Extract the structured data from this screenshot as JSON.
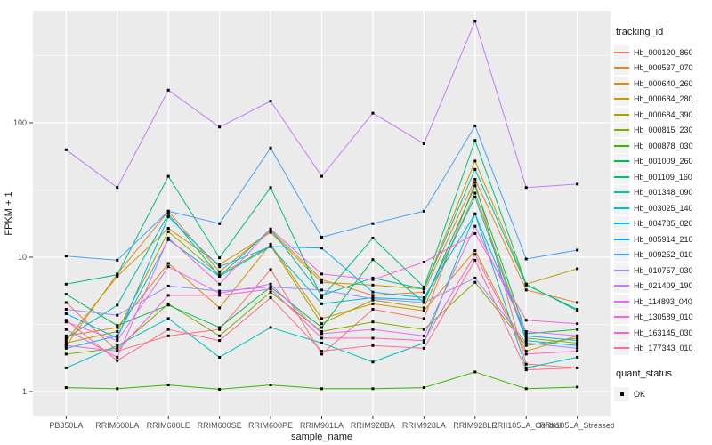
{
  "chart_data": {
    "type": "line",
    "title": "",
    "xlabel": "sample_name",
    "ylabel": "FPKM + 1",
    "y_scale": "log10",
    "y_ticks": [
      1,
      10,
      100
    ],
    "ylim": [
      1,
      620
    ],
    "grid": "on",
    "legend_position": "right",
    "panel_bg": "#EBEBEB",
    "grid_major_color": "#FFFFFF",
    "grid_minor_color": "#F5F5F5",
    "tick_color": "#333333",
    "axis_text_color": "#4D4D4D",
    "axis_title_color": "#1A1A1A",
    "point_color": "#000000",
    "legend_key_bg": "#F2F2F2",
    "legend_title": "tracking_id",
    "legend2_title": "quant_status",
    "legend2_items": [
      {
        "label": "OK",
        "marker": "black-square"
      }
    ],
    "categories": [
      "PB350LA",
      "RRIM600LA",
      "RRIM600LE",
      "RRIM600SE",
      "RRIM600PE",
      "RRIM901LA",
      "RRIM928BA",
      "RRIM928LA",
      "RRIM928LE",
      "RRII105LA_Control",
      "RRII105LA_Stressed"
    ],
    "series": [
      {
        "name": "Hb_000120_860",
        "color": "#F8766D",
        "values": [
          4.6,
          2.0,
          2.6,
          2.9,
          8.1,
          1.9,
          4.1,
          3.5,
          36,
          1.6,
          1.5
        ]
      },
      {
        "name": "Hb_000537_070",
        "color": "#E88526",
        "values": [
          2.2,
          7.5,
          22,
          7.8,
          15.8,
          6.8,
          5.2,
          5.5,
          38,
          5.7,
          4.6
        ]
      },
      {
        "name": "Hb_000640_260",
        "color": "#D89000",
        "values": [
          2.6,
          3.0,
          9.0,
          4.2,
          12.5,
          3.5,
          4.5,
          4.0,
          11.2,
          2.0,
          2.6
        ]
      },
      {
        "name": "Hb_000684_280",
        "color": "#C49A00",
        "values": [
          2.4,
          7.2,
          16.4,
          8.8,
          15.3,
          6.5,
          6.2,
          5.8,
          52,
          6.3,
          8.2
        ]
      },
      {
        "name": "Hb_000684_390",
        "color": "#A3A500",
        "values": [
          2.3,
          2.8,
          15.5,
          7.4,
          12.2,
          3.2,
          4.8,
          4.2,
          30,
          2.5,
          2.3
        ]
      },
      {
        "name": "Hb_000815_230",
        "color": "#7CAE00",
        "values": [
          1.9,
          2.1,
          4.5,
          2.6,
          5.5,
          2.8,
          3.3,
          2.9,
          6.5,
          2.2,
          2.5
        ]
      },
      {
        "name": "Hb_000878_030",
        "color": "#39B600",
        "values": [
          1.07,
          1.05,
          1.12,
          1.04,
          1.12,
          1.05,
          1.05,
          1.07,
          1.4,
          1.05,
          1.08
        ]
      },
      {
        "name": "Hb_001009_260",
        "color": "#00BB4E",
        "values": [
          5.3,
          3.1,
          4.4,
          3.0,
          6.0,
          3.0,
          9.6,
          4.6,
          34,
          2.7,
          2.9
        ]
      },
      {
        "name": "Hb_001109_160",
        "color": "#00BF7D",
        "values": [
          6.3,
          7.4,
          40,
          9.9,
          33,
          5.0,
          13.9,
          6.0,
          74,
          6.3,
          4.0
        ]
      },
      {
        "name": "Hb_001348_090",
        "color": "#00C1A3",
        "values": [
          2.5,
          4.4,
          21,
          7.2,
          16.2,
          5.2,
          7.0,
          5.8,
          45,
          6.2,
          4.1
        ]
      },
      {
        "name": "Hb_003025_140",
        "color": "#00BFC4",
        "values": [
          1.5,
          2.2,
          3.5,
          1.8,
          3.0,
          2.3,
          1.66,
          2.3,
          21,
          1.5,
          1.8
        ]
      },
      {
        "name": "Hb_004735_020",
        "color": "#00BAE0",
        "values": [
          2.1,
          2.6,
          13.5,
          7.2,
          12.0,
          4.5,
          5.0,
          4.8,
          28,
          2.4,
          2.2
        ]
      },
      {
        "name": "Hb_005914_210",
        "color": "#00B0F6",
        "values": [
          3.8,
          2.5,
          20,
          8.5,
          12.0,
          11.7,
          5.5,
          5.0,
          21,
          2.6,
          2.4
        ]
      },
      {
        "name": "Hb_009252_010",
        "color": "#42A1FF",
        "values": [
          10.2,
          9.5,
          22,
          17.8,
          65,
          14.1,
          17.8,
          22,
          95,
          9.7,
          11.3
        ]
      },
      {
        "name": "Hb_010757_030",
        "color": "#9C8DFF",
        "values": [
          4.1,
          3.7,
          6.1,
          5.6,
          6.0,
          5.7,
          4.9,
          4.6,
          7.0,
          2.3,
          2.1
        ]
      },
      {
        "name": "Hb_021409_190",
        "color": "#C879FF",
        "values": [
          63,
          33,
          175,
          93,
          145,
          40,
          118,
          70,
          570,
          33,
          35
        ]
      },
      {
        "name": "Hb_114893_040",
        "color": "#E76BF3",
        "values": [
          3.3,
          2.4,
          8.5,
          5.4,
          6.3,
          2.7,
          2.9,
          2.6,
          17,
          2.8,
          2.6
        ]
      },
      {
        "name": "Hb_130589_010",
        "color": "#F863DF",
        "values": [
          2.9,
          1.8,
          13.9,
          6.3,
          16.2,
          7.5,
          6.8,
          9.2,
          15,
          3.4,
          3.2
        ]
      },
      {
        "name": "Hb_163145_030",
        "color": "#FF61C7",
        "values": [
          2.2,
          2.0,
          5.2,
          5.2,
          5.8,
          2.5,
          2.5,
          2.4,
          10.5,
          1.9,
          2.0
        ]
      },
      {
        "name": "Hb_177343_010",
        "color": "#FF6C91",
        "values": [
          3.4,
          1.7,
          2.9,
          2.4,
          5.0,
          2.0,
          2.2,
          2.1,
          9.5,
          1.45,
          1.5
        ]
      }
    ]
  }
}
